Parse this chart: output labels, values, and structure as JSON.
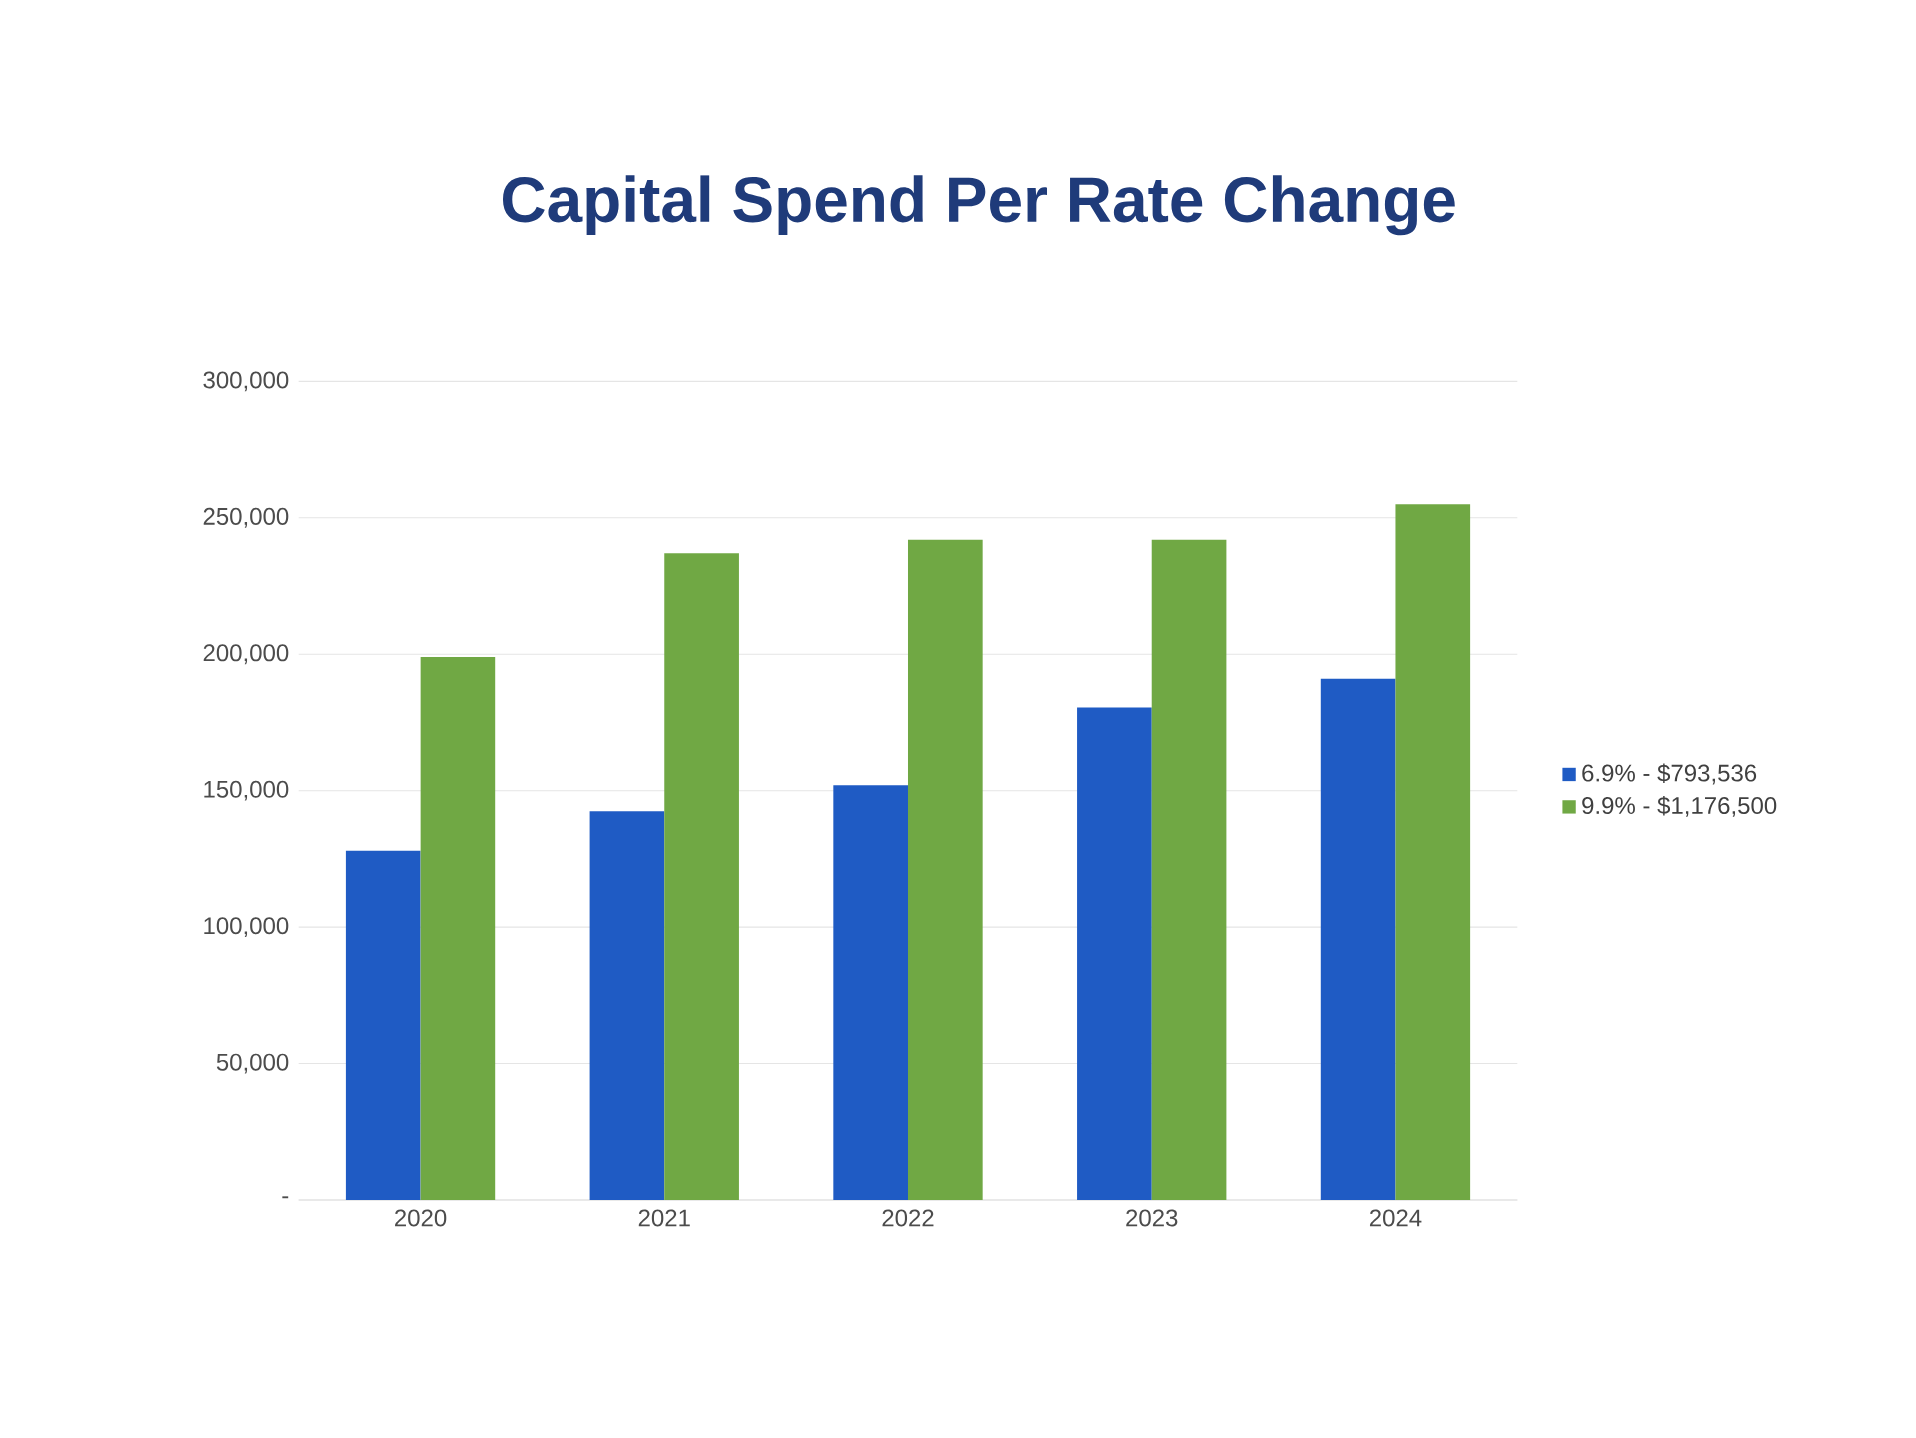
{
  "chart_data": {
    "type": "bar",
    "title": "Capital Spend Per Rate Change",
    "categories": [
      "2020",
      "2021",
      "2022",
      "2023",
      "2024"
    ],
    "series": [
      {
        "name": "6.9% - $793,536",
        "color": "#1f5bc4",
        "values": [
          128000,
          142500,
          152000,
          180500,
          191000
        ]
      },
      {
        "name": "9.9% - $1,176,500",
        "color": "#70a844",
        "values": [
          199000,
          237000,
          242000,
          242000,
          255000
        ]
      }
    ],
    "ylim": [
      0,
      300000
    ],
    "yticks": [
      {
        "value": 0,
        "label": "-"
      },
      {
        "value": 50000,
        "label": "50,000"
      },
      {
        "value": 100000,
        "label": "100,000"
      },
      {
        "value": 150000,
        "label": "150,000"
      },
      {
        "value": 200000,
        "label": "200,000"
      },
      {
        "value": 250000,
        "label": "250,000"
      },
      {
        "value": 300000,
        "label": "300,000"
      }
    ],
    "grid": "y",
    "legend": "right"
  }
}
